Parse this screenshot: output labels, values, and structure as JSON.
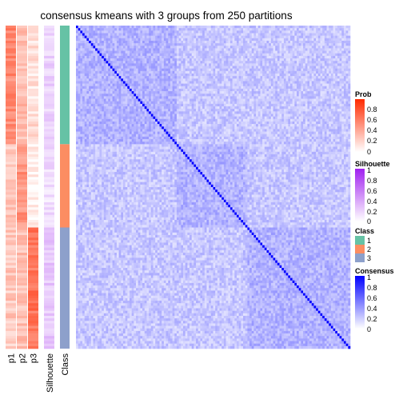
{
  "chart_data": {
    "type": "heatmap",
    "title": "consensus kmeans with 3 groups from 250 partitions",
    "n_samples": 128,
    "class_sizes": [
      47,
      33,
      48
    ],
    "annotation_columns": [
      "p1",
      "p2",
      "p3",
      "Silhouette",
      "Class"
    ],
    "class_colors": {
      "1": "#66C2A5",
      "2": "#FC8D62",
      "3": "#8DA0CB"
    },
    "prob_low_color": "#FFFFFF",
    "prob_high_color": "#FF2A00",
    "silhouette_low_color": "#FFFFFF",
    "silhouette_high_color": "#A020F0",
    "consensus_low_color": "#FFFFFF",
    "consensus_high_color": "#0000FF",
    "legends": [
      {
        "title": "Prob",
        "ticks": [
          "0.8",
          "0.6",
          "0.4",
          "0.2",
          "0"
        ]
      },
      {
        "title": "Silhouette",
        "ticks": [
          "1",
          "0.8",
          "0.6",
          "0.4",
          "0.2",
          "0"
        ]
      },
      {
        "title": "Class",
        "entries": [
          "1",
          "2",
          "3"
        ]
      },
      {
        "title": "Consensus",
        "ticks": [
          "1",
          "0.8",
          "0.6",
          "0.4",
          "0.2",
          "0"
        ]
      }
    ],
    "x_labels": [
      "p1",
      "p2",
      "p3",
      "Silhouette",
      "Class"
    ],
    "membership_mean": {
      "class1": {
        "p1": 0.55,
        "p2": 0.3,
        "p3": 0.15
      },
      "class2": {
        "p1": 0.25,
        "p2": 0.5,
        "p3": 0.05
      },
      "class3": {
        "p1": 0.25,
        "p2": 0.3,
        "p3": 0.65
      }
    },
    "silhouette_mean": {
      "class1": 0.1,
      "class2": 0.05,
      "class3": 0.15
    },
    "consensus_mean": {
      "within": 0.3,
      "between": 0.22,
      "diagonal": 1
    }
  }
}
